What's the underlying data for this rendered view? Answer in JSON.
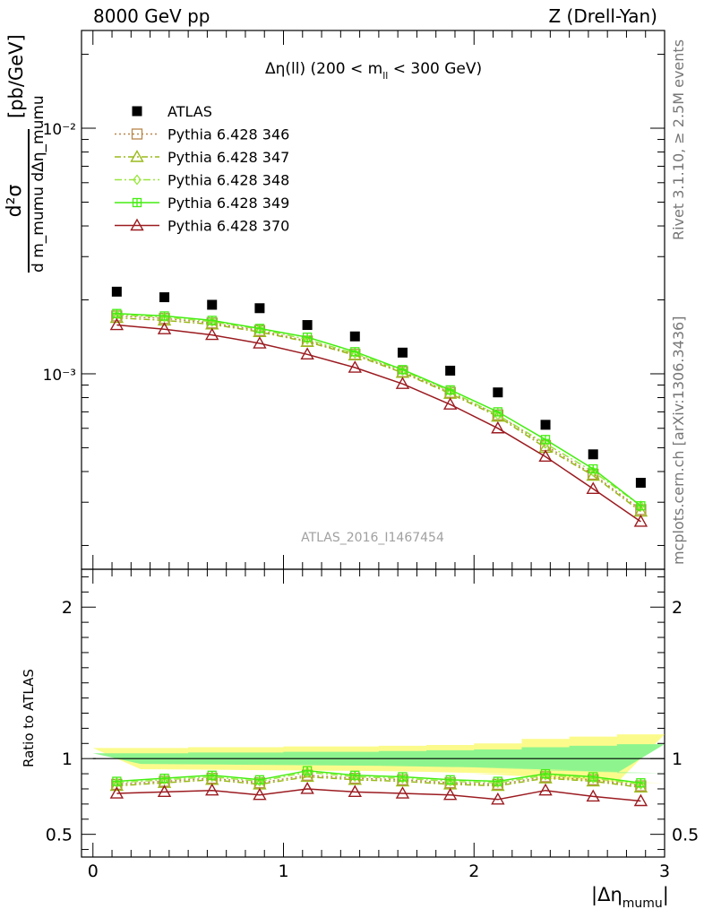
{
  "header": {
    "left": "8000 GeV pp",
    "right": "Z (Drell-Yan)"
  },
  "side_labels": {
    "rivet": "Rivet 3.1.10, ≥ 2.5M events",
    "mcplots": "mcplots.cern.ch [arXiv:1306.3436]"
  },
  "colors": {
    "atlas": "#000000",
    "p346": "#b8864b",
    "p347": "#9aba1a",
    "p348": "#9ae640",
    "p349": "#44ee11",
    "p370": "#9b1b20",
    "band_outer": "#fbfb8c",
    "band_inner": "#8ef58e"
  },
  "chart_data": [
    {
      "type": "scatter",
      "title": "Δη(ll) (200 < m_ll < 300 GeV)",
      "title_parts": {
        "pre": "Δη(ll) (200 < m",
        "sub": "ll",
        "post": " < 300 GeV)"
      },
      "ylabel": "d²σ / d m_mumu dΔη_mumu [pb/GeV]",
      "ylabel_parts": {
        "num": "d²σ",
        "den": "d m_mumu dΔη_mumu",
        "unit": "[pb/GeV]"
      },
      "yscale": "log",
      "ylim": [
        0.00016,
        0.025
      ],
      "xlim": [
        -0.06,
        3.0
      ],
      "yticks": [
        {
          "value": 0.01,
          "label": "10⁻²"
        },
        {
          "value": 0.001,
          "label": "10⁻³"
        }
      ],
      "watermark": "ATLAS_2016_I1467454",
      "x": [
        0.125,
        0.375,
        0.625,
        0.875,
        1.125,
        1.375,
        1.625,
        1.875,
        2.125,
        2.375,
        2.625,
        2.875
      ],
      "series": [
        {
          "name": "ATLAS",
          "key": "atlas",
          "marker": "square",
          "values": [
            0.00216,
            0.00205,
            0.00191,
            0.00185,
            0.00158,
            0.00142,
            0.00122,
            0.00103,
            0.00084,
            0.00062,
            0.00047,
            0.00036
          ]
        },
        {
          "name": "Pythia 6.428 346",
          "key": "p346",
          "marker": "open-square",
          "dash": "2,3",
          "values": [
            0.00172,
            0.00168,
            0.00161,
            0.0015,
            0.00136,
            0.0012,
            0.00102,
            0.00084,
            0.00068,
            0.00051,
            0.00039,
            0.00028
          ]
        },
        {
          "name": "Pythia 6.428 347",
          "key": "p347",
          "marker": "open-triangle",
          "dash": "7,3,2,3",
          "values": [
            0.00169,
            0.00165,
            0.00159,
            0.00148,
            0.00135,
            0.00119,
            0.00101,
            0.00083,
            0.00067,
            0.0005,
            0.000385,
            0.000275
          ]
        },
        {
          "name": "Pythia 6.428 348",
          "key": "p348",
          "marker": "diamond",
          "dash": "8,3,2,3",
          "values": [
            0.00174,
            0.0017,
            0.00163,
            0.00152,
            0.00138,
            0.00121,
            0.00103,
            0.00085,
            0.00068,
            0.00052,
            0.0004,
            0.00029
          ]
        },
        {
          "name": "Pythia 6.428 349",
          "key": "p349",
          "marker": "cross-square",
          "dash": "",
          "values": [
            0.00176,
            0.00172,
            0.00165,
            0.00153,
            0.00141,
            0.00123,
            0.00104,
            0.00086,
            0.0007,
            0.00054,
            0.00041,
            0.00029
          ]
        },
        {
          "name": "Pythia 6.428 370",
          "key": "p370",
          "marker": "open-triangle",
          "dash": "",
          "values": [
            0.00158,
            0.00152,
            0.00144,
            0.00133,
            0.0012,
            0.00106,
            0.00091,
            0.00075,
            0.0006,
            0.00046,
            0.00034,
            0.00025
          ]
        }
      ]
    },
    {
      "type": "scatter",
      "ylabel": "Ratio to ATLAS",
      "xlabel": "|Δη_mumu|",
      "xlabel_parts": {
        "pre": "|Δη",
        "sub": "mumu",
        "post": "|"
      },
      "ylim": [
        0.35,
        2.25
      ],
      "xlim": [
        -0.06,
        3.0
      ],
      "yticks": [
        {
          "value": 0.5,
          "label": "0.5"
        },
        {
          "value": 1,
          "label": "1"
        },
        {
          "value": 2,
          "label": "2"
        }
      ],
      "xticks": [
        {
          "value": 0,
          "label": "0"
        },
        {
          "value": 1,
          "label": "1"
        },
        {
          "value": 2,
          "label": "2"
        },
        {
          "value": 3,
          "label": "3"
        }
      ],
      "band_inner": [
        0.035,
        0.035,
        0.04,
        0.04,
        0.045,
        0.045,
        0.05,
        0.055,
        0.06,
        0.075,
        0.085,
        0.095
      ],
      "band_outer": [
        0.07,
        0.07,
        0.075,
        0.075,
        0.08,
        0.08,
        0.085,
        0.09,
        0.1,
        0.13,
        0.145,
        0.16
      ],
      "series": [
        {
          "name": "Pythia 6.428 346",
          "key": "p346",
          "values": [
            0.83,
            0.85,
            0.87,
            0.84,
            0.89,
            0.87,
            0.86,
            0.84,
            0.83,
            0.88,
            0.86,
            0.82
          ]
        },
        {
          "name": "Pythia 6.428 347",
          "key": "p347",
          "values": [
            0.82,
            0.84,
            0.86,
            0.83,
            0.88,
            0.86,
            0.85,
            0.83,
            0.82,
            0.87,
            0.85,
            0.81
          ]
        },
        {
          "name": "Pythia 6.428 348",
          "key": "p348",
          "values": [
            0.84,
            0.86,
            0.88,
            0.85,
            0.91,
            0.88,
            0.87,
            0.85,
            0.84,
            0.89,
            0.87,
            0.83
          ]
        },
        {
          "name": "Pythia 6.428 349",
          "key": "p349",
          "values": [
            0.85,
            0.87,
            0.89,
            0.86,
            0.92,
            0.89,
            0.88,
            0.86,
            0.85,
            0.9,
            0.88,
            0.84
          ]
        },
        {
          "name": "Pythia 6.428 370",
          "key": "p370",
          "values": [
            0.77,
            0.78,
            0.79,
            0.76,
            0.8,
            0.78,
            0.77,
            0.76,
            0.73,
            0.79,
            0.75,
            0.72
          ]
        }
      ]
    }
  ]
}
